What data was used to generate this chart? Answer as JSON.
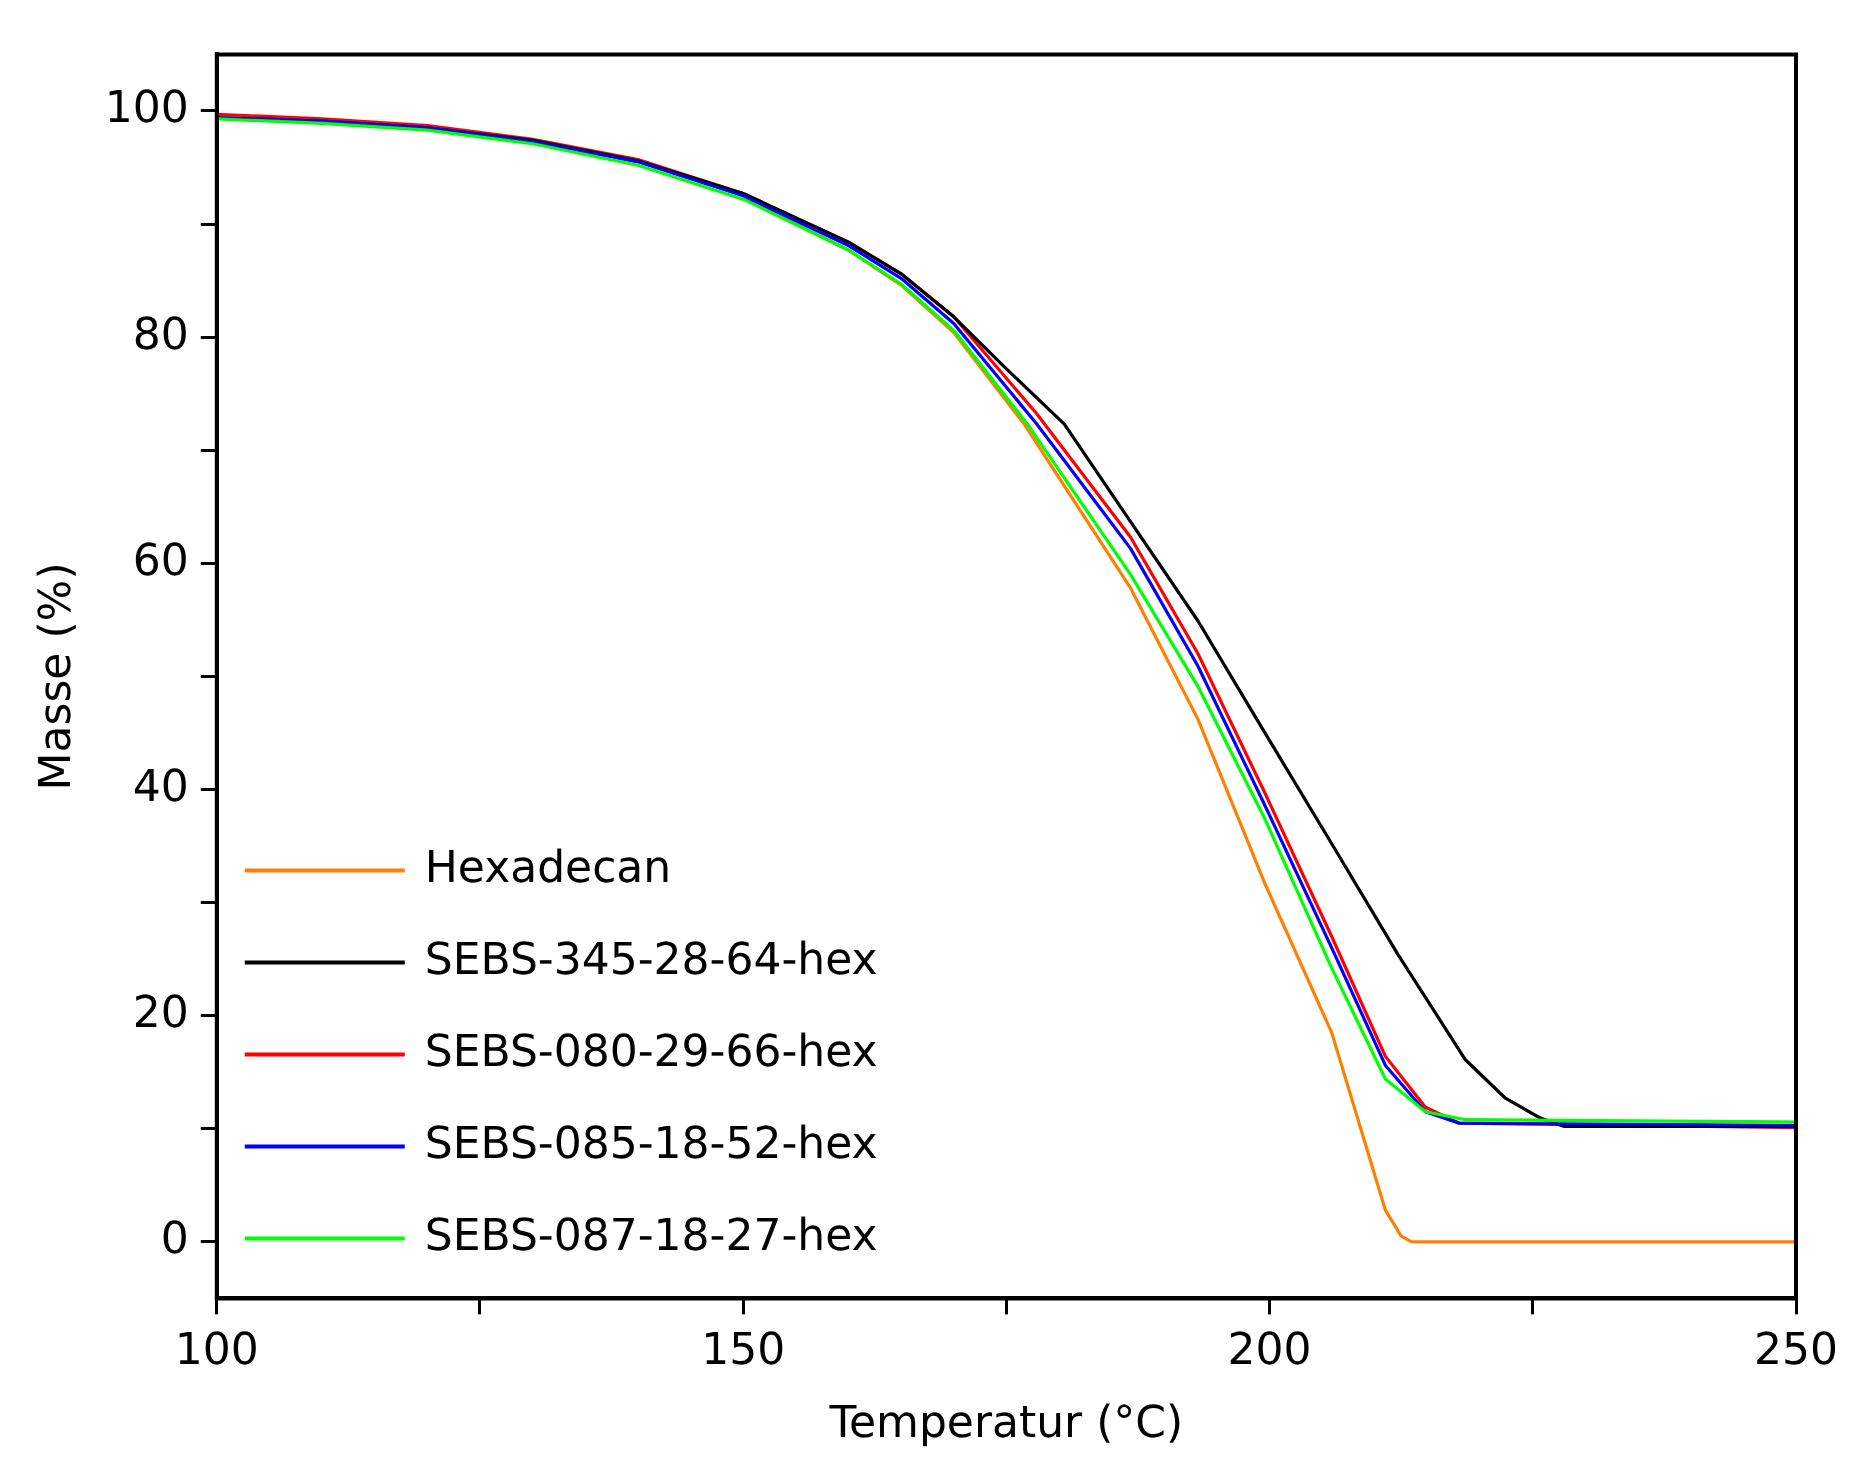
{
  "chart_data": {
    "type": "line",
    "xlabel": "Temperatur (°C)",
    "ylabel": "Masse (%)",
    "xlim": [
      100,
      250
    ],
    "ylim": [
      -5,
      105
    ],
    "xticks": [
      100,
      {
        "value": 125,
        "label": null
      },
      150,
      {
        "value": 175,
        "label": null
      },
      200,
      {
        "value": 225,
        "label": null
      },
      250
    ],
    "yticks": [
      0,
      {
        "value": 10,
        "label": null
      },
      20,
      {
        "value": 30,
        "label": null
      },
      40,
      {
        "value": 50,
        "label": null
      },
      60,
      {
        "value": 70,
        "label": null
      },
      80,
      {
        "value": 90,
        "label": null
      },
      100
    ],
    "grid": false,
    "legend": "bottom left",
    "marker": "none",
    "line_style": "solid",
    "series": [
      {
        "name": "Hexadecan",
        "color": "#ff8000",
        "x": [
          150,
          160,
          165,
          170,
          176.7,
          186.8,
          193.2,
          199.5,
          205.9,
          211,
          212.5,
          213.5,
          250
        ],
        "values": [
          92.3,
          87.7,
          84.6,
          80.4,
          72.3,
          57.8,
          46.2,
          31.8,
          18.5,
          2.8,
          0.5,
          0,
          0
        ]
      },
      {
        "name": "SEBS-345-28-64-hex",
        "color": "#000000",
        "x": [
          100,
          110,
          120,
          130,
          140,
          150,
          160,
          165,
          170,
          175,
          180.5,
          193.2,
          199.5,
          205.9,
          212.2,
          218.6,
          222.4,
          225.6,
          228,
          250
        ],
        "values": [
          99.4,
          99.1,
          98.5,
          97.4,
          95.6,
          92.7,
          88.4,
          85.6,
          81.8,
          77.2,
          72.3,
          54.9,
          45.1,
          35.2,
          25.4,
          16.1,
          12.7,
          11,
          10.2,
          10.2
        ]
      },
      {
        "name": "SEBS-080-29-66-hex",
        "color": "#ff0000",
        "x": [
          100,
          110,
          120,
          130,
          140,
          150,
          160,
          165,
          170,
          177.9,
          186.8,
          193.2,
          199.5,
          205.9,
          211,
          214.8,
          218,
          250
        ],
        "values": [
          99.7,
          99.3,
          98.7,
          97.5,
          95.7,
          92.7,
          88.4,
          85.6,
          81.8,
          73.2,
          62.3,
          52,
          39.8,
          27,
          16.4,
          11.9,
          10.5,
          10.1
        ]
      },
      {
        "name": "SEBS-085-18-52-hex",
        "color": "#0000ff",
        "x": [
          100,
          110,
          120,
          130,
          140,
          150,
          160,
          165,
          170,
          177.9,
          186.8,
          193.2,
          199.5,
          205.9,
          211,
          214.8,
          218,
          250
        ],
        "values": [
          99.4,
          99.1,
          98.5,
          97.3,
          95.5,
          92.5,
          88.1,
          85.2,
          81.2,
          72.3,
          61.3,
          50.9,
          38.7,
          26,
          15.6,
          11.5,
          10.5,
          10.3
        ]
      },
      {
        "name": "SEBS-087-18-27-hex",
        "color": "#00ff00",
        "x": [
          100,
          110,
          120,
          130,
          140,
          150,
          160,
          165,
          170,
          177,
          186.8,
          193.2,
          199.5,
          205.9,
          211,
          214.8,
          218.6,
          250
        ],
        "values": [
          99.3,
          98.9,
          98.3,
          97.1,
          95.2,
          92.2,
          87.7,
          84.7,
          80.6,
          72.3,
          59,
          49.1,
          37.5,
          24.2,
          14.4,
          11.5,
          10.8,
          10.6
        ]
      }
    ]
  }
}
